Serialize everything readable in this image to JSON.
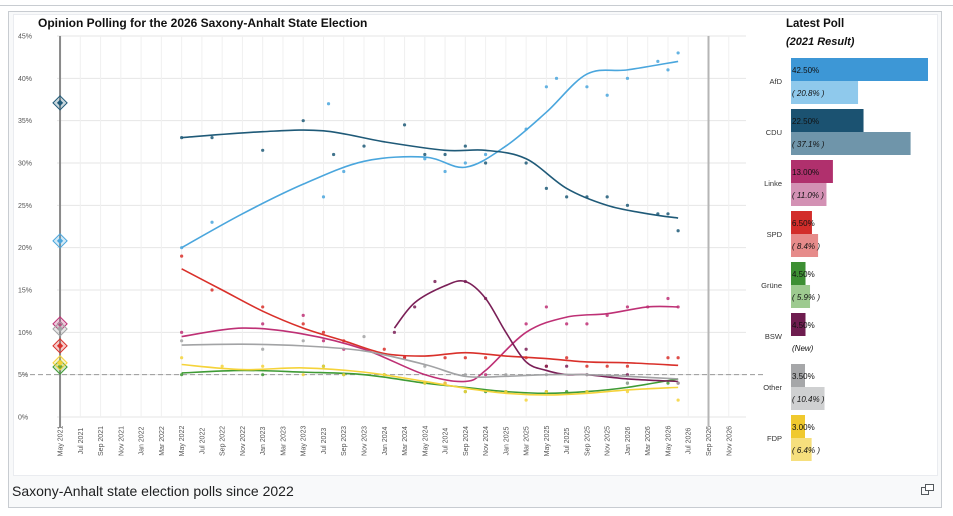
{
  "caption": "Saxony-Anhalt state election polls since 2022",
  "icons": {
    "enlarge": "enlarge-icon"
  },
  "chart_data": {
    "type": "line",
    "title": "Opinion Polling for the 2026 Saxony-Anhalt State Election",
    "ylim": [
      0,
      45
    ],
    "yticks": [
      "0%",
      "5%",
      "10%",
      "15%",
      "20%",
      "25%",
      "30%",
      "35%",
      "40%",
      "45%"
    ],
    "xticks": [
      "May 2021",
      "Jul 2021",
      "Sep 2021",
      "Nov 2021",
      "Jan 2022",
      "Mar 2022",
      "May 2022",
      "Jul 2022",
      "Sep 2022",
      "Nov 2022",
      "Jan 2023",
      "Mar 2023",
      "May 2023",
      "Jul 2023",
      "Sep 2023",
      "Nov 2023",
      "Jan 2024",
      "Mar 2024",
      "May 2024",
      "Jul 2024",
      "Sep 2024",
      "Nov 2024",
      "Jan 2025",
      "Mar 2025",
      "May 2025",
      "Jul 2025",
      "Sep 2025",
      "Nov 2025",
      "Jan 2026",
      "Mar 2026",
      "May 2026",
      "Jul 2026",
      "Sep 2026",
      "Nov 2026"
    ],
    "threshold": 5,
    "grid": true,
    "series": [
      {
        "name": "AfD",
        "color": "#4aa6dd",
        "result_2021": 20.8,
        "trend": [
          [
            12,
            20
          ],
          [
            18,
            24
          ],
          [
            24,
            27.5
          ],
          [
            30,
            30.2
          ],
          [
            36,
            30.7
          ],
          [
            40,
            29.5
          ],
          [
            44,
            32
          ],
          [
            48,
            36
          ],
          [
            52,
            40.5
          ],
          [
            56,
            41
          ],
          [
            61,
            42
          ]
        ],
        "points": [
          [
            12,
            20
          ],
          [
            15,
            23
          ],
          [
            26,
            26
          ],
          [
            26.5,
            37
          ],
          [
            28,
            29
          ],
          [
            36,
            30.5
          ],
          [
            38,
            29
          ],
          [
            40,
            30
          ],
          [
            42,
            31
          ],
          [
            46,
            34
          ],
          [
            48,
            39
          ],
          [
            49,
            40
          ],
          [
            52,
            39
          ],
          [
            54,
            38
          ],
          [
            56,
            40
          ],
          [
            59,
            42
          ],
          [
            60,
            41
          ],
          [
            61,
            43
          ]
        ]
      },
      {
        "name": "CDU",
        "color": "#1f5a78",
        "result_2021": 37.1,
        "trend": [
          [
            12,
            33
          ],
          [
            20,
            33.7
          ],
          [
            26,
            33.8
          ],
          [
            32,
            32.5
          ],
          [
            38,
            31.5
          ],
          [
            42,
            31.5
          ],
          [
            46,
            30.5
          ],
          [
            50,
            27
          ],
          [
            54,
            25
          ],
          [
            58,
            24
          ],
          [
            61,
            23.5
          ]
        ],
        "points": [
          [
            12,
            33
          ],
          [
            15,
            33
          ],
          [
            20,
            31.5
          ],
          [
            24,
            35
          ],
          [
            27,
            31
          ],
          [
            30,
            32
          ],
          [
            34,
            34.5
          ],
          [
            36,
            31
          ],
          [
            38,
            31
          ],
          [
            40,
            32
          ],
          [
            42,
            30
          ],
          [
            46,
            30
          ],
          [
            48,
            27
          ],
          [
            50,
            26
          ],
          [
            52,
            26
          ],
          [
            54,
            26
          ],
          [
            56,
            25
          ],
          [
            59,
            24
          ],
          [
            60,
            24
          ],
          [
            61,
            22
          ]
        ]
      },
      {
        "name": "Linke",
        "color": "#be3075",
        "result_2021": 11.0,
        "trend": [
          [
            12,
            9.5
          ],
          [
            18,
            10.5
          ],
          [
            24,
            9.8
          ],
          [
            30,
            8
          ],
          [
            36,
            5
          ],
          [
            40,
            4.2
          ],
          [
            42,
            5.5
          ],
          [
            46,
            10
          ],
          [
            50,
            11.8
          ],
          [
            54,
            12.2
          ],
          [
            58,
            13
          ],
          [
            61,
            13
          ]
        ],
        "points": [
          [
            12,
            10
          ],
          [
            20,
            11
          ],
          [
            24,
            12
          ],
          [
            26,
            9
          ],
          [
            28,
            8
          ],
          [
            34,
            7
          ],
          [
            38,
            4
          ],
          [
            42,
            5
          ],
          [
            46,
            11
          ],
          [
            48,
            13
          ],
          [
            50,
            11
          ],
          [
            52,
            11
          ],
          [
            54,
            12
          ],
          [
            56,
            13
          ],
          [
            58,
            13
          ],
          [
            60,
            14
          ],
          [
            61,
            13
          ]
        ]
      },
      {
        "name": "SPD",
        "color": "#d9302a",
        "result_2021": 8.4,
        "trend": [
          [
            12,
            17.5
          ],
          [
            16,
            15
          ],
          [
            20,
            12.5
          ],
          [
            24,
            10.5
          ],
          [
            28,
            9
          ],
          [
            32,
            7.5
          ],
          [
            36,
            7.2
          ],
          [
            40,
            7.6
          ],
          [
            44,
            7.2
          ],
          [
            48,
            6.9
          ],
          [
            52,
            6.5
          ],
          [
            56,
            6.4
          ],
          [
            61,
            6.1
          ]
        ],
        "points": [
          [
            12,
            19
          ],
          [
            15,
            15
          ],
          [
            20,
            13
          ],
          [
            24,
            11
          ],
          [
            26,
            10
          ],
          [
            28,
            9
          ],
          [
            32,
            8
          ],
          [
            34,
            7
          ],
          [
            38,
            7
          ],
          [
            40,
            7
          ],
          [
            42,
            7
          ],
          [
            46,
            7
          ],
          [
            48,
            6
          ],
          [
            50,
            7
          ],
          [
            52,
            6
          ],
          [
            54,
            6
          ],
          [
            56,
            6
          ],
          [
            60,
            7
          ],
          [
            61,
            7
          ]
        ]
      },
      {
        "name": "Grüne",
        "color": "#3f9b35",
        "result_2021": 5.9,
        "trend": [
          [
            12,
            5.2
          ],
          [
            18,
            5.5
          ],
          [
            24,
            5.3
          ],
          [
            30,
            5
          ],
          [
            36,
            4
          ],
          [
            40,
            3.5
          ],
          [
            44,
            3
          ],
          [
            48,
            2.8
          ],
          [
            52,
            3
          ],
          [
            56,
            3.5
          ],
          [
            61,
            4.5
          ]
        ],
        "points": [
          [
            12,
            5
          ],
          [
            20,
            5
          ],
          [
            26,
            6
          ],
          [
            28,
            5
          ],
          [
            32,
            5
          ],
          [
            36,
            4
          ],
          [
            40,
            3
          ],
          [
            42,
            3
          ],
          [
            44,
            3
          ],
          [
            48,
            3
          ],
          [
            50,
            3
          ],
          [
            52,
            3
          ],
          [
            56,
            4
          ],
          [
            60,
            4
          ]
        ]
      },
      {
        "name": "BSW",
        "color": "#7a1f57",
        "result_2021": null,
        "trend": [
          [
            33,
            10.5
          ],
          [
            35,
            13.5
          ],
          [
            38,
            15.5
          ],
          [
            40,
            16
          ],
          [
            42,
            14
          ],
          [
            44,
            10
          ],
          [
            46,
            6.5
          ],
          [
            48,
            5.5
          ],
          [
            50,
            5
          ],
          [
            52,
            5
          ],
          [
            56,
            4.5
          ],
          [
            61,
            4.2
          ]
        ],
        "points": [
          [
            33,
            10
          ],
          [
            35,
            13
          ],
          [
            37,
            16
          ],
          [
            40,
            16
          ],
          [
            42,
            14
          ],
          [
            46,
            8
          ],
          [
            48,
            6
          ],
          [
            50,
            6
          ],
          [
            52,
            5
          ],
          [
            56,
            5
          ],
          [
            61,
            4
          ]
        ]
      },
      {
        "name": "Other",
        "color": "#a2a3a5",
        "result_2021": 10.4,
        "trend": [
          [
            12,
            8.5
          ],
          [
            18,
            8.6
          ],
          [
            24,
            8.4
          ],
          [
            30,
            7.8
          ],
          [
            36,
            6.2
          ],
          [
            40,
            4.8
          ],
          [
            44,
            4.8
          ],
          [
            48,
            5
          ],
          [
            52,
            5
          ],
          [
            56,
            4.8
          ],
          [
            61,
            4.5
          ]
        ],
        "points": [
          [
            12,
            9
          ],
          [
            20,
            8
          ],
          [
            24,
            9
          ],
          [
            30,
            9.5
          ],
          [
            36,
            6
          ],
          [
            40,
            5
          ],
          [
            44,
            5
          ],
          [
            48,
            5
          ],
          [
            52,
            5
          ],
          [
            56,
            4
          ],
          [
            61,
            4
          ]
        ]
      },
      {
        "name": "FDP",
        "color": "#f5d33a",
        "result_2021": 6.4,
        "trend": [
          [
            12,
            6.2
          ],
          [
            18,
            5.6
          ],
          [
            24,
            5.8
          ],
          [
            30,
            5.3
          ],
          [
            36,
            4.2
          ],
          [
            40,
            3.4
          ],
          [
            44,
            2.8
          ],
          [
            48,
            2.6
          ],
          [
            52,
            2.8
          ],
          [
            56,
            3.2
          ],
          [
            61,
            3.5
          ]
        ],
        "points": [
          [
            12,
            7
          ],
          [
            16,
            6
          ],
          [
            20,
            6
          ],
          [
            24,
            5
          ],
          [
            26,
            6
          ],
          [
            28,
            5
          ],
          [
            32,
            5
          ],
          [
            36,
            4
          ],
          [
            38,
            4
          ],
          [
            40,
            3
          ],
          [
            44,
            3
          ],
          [
            46,
            2
          ],
          [
            48,
            3
          ],
          [
            52,
            3
          ],
          [
            56,
            3
          ],
          [
            61,
            2
          ]
        ]
      }
    ]
  },
  "sidebar": {
    "title": "Latest Poll",
    "subtitle": "(2021 Result)",
    "parties": [
      {
        "name": "AfD",
        "latest": "42.50%",
        "latest_value": 42.5,
        "result": "( 20.8% )",
        "result_value": 20.8,
        "color": "#3d97d6",
        "result_color": "#8fc9ec"
      },
      {
        "name": "CDU",
        "latest": "22.50%",
        "latest_value": 22.5,
        "result": "( 37.1% )",
        "result_value": 37.1,
        "color": "#1b5271",
        "result_color": "#6f95aa"
      },
      {
        "name": "Linke",
        "latest": "13.00%",
        "latest_value": 13.0,
        "result": "( 11.0% )",
        "result_value": 11.0,
        "color": "#b0306d",
        "result_color": "#d391b4"
      },
      {
        "name": "SPD",
        "latest": "6.50%",
        "latest_value": 6.5,
        "result": "( 8.4% )",
        "result_value": 8.4,
        "color": "#d22d2a",
        "result_color": "#e68b8a"
      },
      {
        "name": "Grüne",
        "latest": "4.50%",
        "latest_value": 4.5,
        "result": "( 5.9% )",
        "result_value": 5.9,
        "color": "#3d8f33",
        "result_color": "#9dca8f"
      },
      {
        "name": "BSW",
        "latest": "4.50%",
        "latest_value": 4.5,
        "result": "(New)",
        "result_value": null,
        "color": "#6e1d4f",
        "result_color": null
      },
      {
        "name": "Other",
        "latest": "3.50%",
        "latest_value": 3.5,
        "result": "( 10.4% )",
        "result_value": 10.4,
        "color": "#a6a7a9",
        "result_color": "#cfd0d1"
      },
      {
        "name": "FDP",
        "latest": "3.00%",
        "latest_value": 3.0,
        "result": "( 6.4% )",
        "result_value": 6.4,
        "color": "#f0c92e",
        "result_color": "#f6df7d"
      }
    ]
  }
}
